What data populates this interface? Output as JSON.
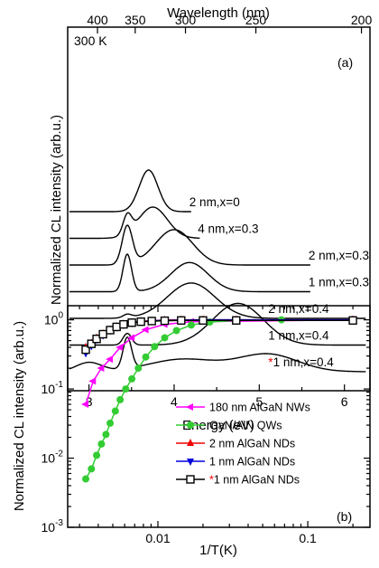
{
  "chart_data": [
    {
      "panel": "(a)",
      "type": "line",
      "xlabel": "Energy (eV)",
      "ylabel": "Normalized CL intensity (arb.u.)",
      "top_xlabel": "Wavelength (nm)",
      "xlim": [
        2.75,
        6.3
      ],
      "x_ticks": [
        3,
        4,
        5,
        6
      ],
      "top_ticks_nm": [
        400,
        350,
        300,
        250,
        200
      ],
      "annotation": "300 K",
      "panel_tag": "(a)",
      "series": [
        {
          "name": "2 nm,x=0",
          "label_marker": "",
          "offset": 6,
          "x_end": 4.2,
          "peaks": [
            {
              "e": 3.7,
              "w": 0.11,
              "a": 1.0
            }
          ]
        },
        {
          "name": "4 nm,x=0.3",
          "label_marker": "",
          "offset": 5,
          "x_end": 4.3,
          "peaks": [
            {
              "e": 3.45,
              "w": 0.05,
              "a": 0.45
            },
            {
              "e": 3.75,
              "w": 0.17,
              "a": 0.75
            }
          ]
        },
        {
          "name": "2 nm,x=0.3",
          "label_marker": "",
          "offset": 4,
          "x_end": 5.6,
          "peaks": [
            {
              "e": 3.45,
              "w": 0.06,
              "a": 0.92
            },
            {
              "e": 4.0,
              "w": 0.22,
              "a": 0.85
            }
          ]
        },
        {
          "name": "1 nm,x=0.3",
          "label_marker": "",
          "offset": 3,
          "x_end": 5.6,
          "peaks": [
            {
              "e": 3.45,
              "w": 0.05,
              "a": 0.9
            },
            {
              "e": 4.18,
              "w": 0.22,
              "a": 0.7
            }
          ]
        },
        {
          "name": "2 nm,x=0.4",
          "label_marker": "",
          "offset": 2,
          "x_end": 6.25,
          "peaks": [
            {
              "e": 3.45,
              "w": 0.05,
              "a": 0.08
            },
            {
              "e": 4.2,
              "w": 0.28,
              "a": 0.85
            }
          ]
        },
        {
          "name": "1 nm,x=0.4",
          "label_marker": "",
          "offset": 1,
          "x_end": 6.25,
          "peaks": [
            {
              "e": 3.45,
              "w": 0.05,
              "a": 0.28
            },
            {
              "e": 4.75,
              "w": 0.3,
              "a": 1.0
            }
          ]
        },
        {
          "name": "1 nm,x=0.4",
          "label_marker": "*",
          "offset": 0,
          "x_end": 6.25,
          "peaks": [
            {
              "e": 3.0,
              "w": 0.15,
              "a": 0.22
            },
            {
              "e": 3.45,
              "w": 0.05,
              "a": 0.75
            },
            {
              "e": 4.1,
              "w": 0.4,
              "a": 0.3
            },
            {
              "e": 5.1,
              "w": 0.35,
              "a": 0.42
            }
          ]
        }
      ]
    },
    {
      "panel": "(b)",
      "type": "scatter",
      "xlabel": "1/T(K)",
      "ylabel": "Normalized CL intensity (arb.u.)",
      "xscale": "log",
      "yscale": "log",
      "xlim": [
        0.0025,
        0.26
      ],
      "ylim": [
        0.001,
        1.6
      ],
      "x_ticks": [
        0.01,
        0.1
      ],
      "x_tick_labels": [
        "0.01",
        "0.1"
      ],
      "y_ticks": [
        0.001,
        0.01,
        0.1,
        1
      ],
      "panel_tag": "(b)",
      "series": [
        {
          "name": "180 nm AlGaN NWs",
          "label_marker": "",
          "color": "#ff00ff",
          "marker": "triangle-left",
          "x": [
            0.0033,
            0.0037,
            0.0042,
            0.0048,
            0.0056,
            0.0067,
            0.0083,
            0.0111,
            0.0167,
            0.2
          ],
          "y": [
            0.06,
            0.13,
            0.2,
            0.27,
            0.4,
            0.55,
            0.72,
            0.86,
            0.94,
            1.0
          ]
        },
        {
          "name": "GaN/AlN QWs",
          "label_marker": "",
          "color": "#33cc33",
          "marker": "circle",
          "x": [
            0.0033,
            0.0036,
            0.0039,
            0.0042,
            0.0045,
            0.0048,
            0.0052,
            0.0056,
            0.0061,
            0.0067,
            0.0074,
            0.0083,
            0.0095,
            0.0111,
            0.0133,
            0.0167,
            0.0222,
            0.0333,
            0.0667,
            0.2
          ],
          "y": [
            0.005,
            0.007,
            0.011,
            0.016,
            0.022,
            0.032,
            0.048,
            0.07,
            0.1,
            0.14,
            0.2,
            0.29,
            0.41,
            0.55,
            0.7,
            0.84,
            0.93,
            0.98,
            1.0,
            1.0
          ]
        },
        {
          "name": "2 nm AlGaN NDs",
          "label_marker": "",
          "color": "#ee0000",
          "marker": "triangle-up",
          "x": [
            0.0033,
            0.0036,
            0.0039,
            0.0043,
            0.0048,
            0.0053,
            0.0059,
            0.0067,
            0.0077,
            0.0091,
            0.0111,
            0.0143,
            0.02,
            0.0333,
            0.2
          ],
          "y": [
            0.4,
            0.46,
            0.55,
            0.63,
            0.72,
            0.8,
            0.87,
            0.92,
            0.95,
            0.97,
            0.99,
            1.0,
            1.0,
            1.0,
            1.0
          ]
        },
        {
          "name": "1 nm AlGaN NDs",
          "label_marker": "",
          "color": "#0000dd",
          "marker": "triangle-down",
          "x": [
            0.0033,
            0.0036,
            0.0039,
            0.0043,
            0.0048,
            0.0053,
            0.0059,
            0.0067,
            0.0077,
            0.0091,
            0.0111,
            0.0143,
            0.02,
            0.0333,
            0.2
          ],
          "y": [
            0.33,
            0.42,
            0.52,
            0.6,
            0.7,
            0.78,
            0.85,
            0.9,
            0.94,
            0.97,
            0.98,
            0.99,
            1.0,
            1.0,
            1.0
          ]
        },
        {
          "name": "1 nm AlGaN NDs",
          "label_marker": "*",
          "color": "#000000",
          "marker": "square-open",
          "x": [
            0.0033,
            0.0036,
            0.0039,
            0.0043,
            0.0048,
            0.0053,
            0.0059,
            0.0067,
            0.0077,
            0.0091,
            0.0111,
            0.0143,
            0.02,
            0.0333,
            0.2
          ],
          "y": [
            0.37,
            0.45,
            0.53,
            0.62,
            0.71,
            0.79,
            0.86,
            0.91,
            0.94,
            0.96,
            0.97,
            0.98,
            0.98,
            0.98,
            0.98
          ]
        }
      ]
    }
  ]
}
